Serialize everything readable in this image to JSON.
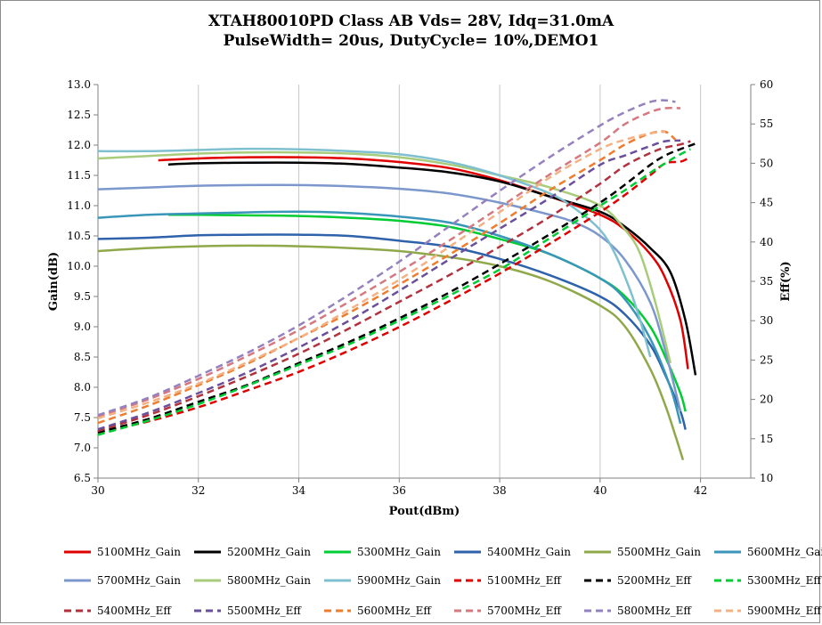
{
  "chart_data": {
    "type": "line",
    "title": "XTAH80010PD Class AB Vds= 28V, Idq=31.0mA",
    "subtitle": "PulseWidth= 20us, DutyCycle= 10%,DEMO1",
    "xlabel": "Pout(dBm)",
    "ylabel": "Gain(dB)",
    "y2label": "Eff(%)",
    "xlim": [
      30,
      43
    ],
    "ylim": [
      6.5,
      13.0
    ],
    "y2lim": [
      10,
      60
    ],
    "x_ticks": [
      "30",
      "32",
      "34",
      "36",
      "38",
      "40",
      "42"
    ],
    "y_ticks": [
      "6.5",
      "7.0",
      "7.5",
      "8.0",
      "8.5",
      "9.0",
      "9.5",
      "10.0",
      "10.5",
      "11.0",
      "11.5",
      "12.0",
      "12.5",
      "13.0"
    ],
    "y2_ticks": [
      "10",
      "15",
      "20",
      "25",
      "30",
      "35",
      "40",
      "45",
      "50",
      "55",
      "60"
    ],
    "grid": "vertical",
    "legend_position": "bottom",
    "series": [
      {
        "name": "5100MHz_Gain",
        "axis": "left",
        "style": "solid",
        "color": "#e00000",
        "x": [
          31.2,
          32,
          33,
          34,
          35,
          36,
          37,
          38,
          39,
          40,
          40.5,
          41,
          41.3,
          41.6,
          41.75
        ],
        "y": [
          11.75,
          11.78,
          11.8,
          11.8,
          11.78,
          11.72,
          11.62,
          11.42,
          11.15,
          10.85,
          10.6,
          10.2,
          9.8,
          9.1,
          8.3
        ]
      },
      {
        "name": "5200MHz_Gain",
        "axis": "left",
        "style": "solid",
        "color": "#000000",
        "x": [
          31.4,
          32,
          33,
          34,
          35,
          36,
          37,
          38,
          39,
          40,
          40.5,
          41,
          41.4,
          41.7,
          41.9
        ],
        "y": [
          11.68,
          11.7,
          11.71,
          11.71,
          11.69,
          11.63,
          11.55,
          11.4,
          11.15,
          10.9,
          10.65,
          10.3,
          9.9,
          9.1,
          8.2
        ]
      },
      {
        "name": "5300MHz_Gain",
        "axis": "left",
        "style": "solid",
        "color": "#00cc33",
        "x": [
          31.4,
          32,
          33,
          34,
          35,
          36,
          37,
          38,
          39,
          40,
          40.5,
          41,
          41.3,
          41.6,
          41.7
        ],
        "y": [
          10.85,
          10.85,
          10.84,
          10.83,
          10.8,
          10.75,
          10.65,
          10.45,
          10.2,
          9.8,
          9.5,
          9.0,
          8.5,
          7.9,
          7.6
        ]
      },
      {
        "name": "5400MHz_Gain",
        "axis": "left",
        "style": "solid",
        "color": "#2e62aa",
        "x": [
          30,
          31,
          32,
          33,
          34,
          35,
          36,
          37,
          38,
          39,
          40,
          40.5,
          41,
          41.3,
          41.6,
          41.7
        ],
        "y": [
          10.45,
          10.47,
          10.51,
          10.52,
          10.52,
          10.5,
          10.42,
          10.32,
          10.12,
          9.85,
          9.5,
          9.2,
          8.7,
          8.2,
          7.6,
          7.3
        ]
      },
      {
        "name": "5500MHz_Gain",
        "axis": "left",
        "style": "solid",
        "color": "#8fa84a",
        "x": [
          30,
          31,
          32,
          33,
          34,
          35,
          36,
          37,
          38,
          39,
          40,
          40.5,
          41,
          41.3,
          41.5,
          41.65
        ],
        "y": [
          10.25,
          10.3,
          10.33,
          10.34,
          10.33,
          10.3,
          10.25,
          10.15,
          10.0,
          9.75,
          9.35,
          9.0,
          8.3,
          7.7,
          7.2,
          6.8
        ]
      },
      {
        "name": "5600MHz_Gain",
        "axis": "left",
        "style": "solid",
        "color": "#3a96b8",
        "x": [
          30,
          31,
          32,
          33,
          34,
          35,
          36,
          37,
          38,
          39,
          40,
          40.5,
          41,
          41.4,
          41.6
        ],
        "y": [
          10.8,
          10.85,
          10.87,
          10.89,
          10.9,
          10.88,
          10.82,
          10.72,
          10.5,
          10.2,
          9.8,
          9.45,
          8.8,
          8.0,
          7.4
        ]
      },
      {
        "name": "5700MHz_Gain",
        "axis": "left",
        "style": "solid",
        "color": "#7b97cc",
        "x": [
          30,
          31,
          32,
          33,
          34,
          35,
          36,
          37,
          38,
          39,
          39.5,
          40,
          40.5,
          41,
          41.3,
          41.6
        ],
        "y": [
          11.27,
          11.3,
          11.33,
          11.34,
          11.34,
          11.32,
          11.28,
          11.2,
          11.05,
          10.85,
          10.72,
          10.5,
          10.1,
          9.4,
          8.6,
          7.6
        ]
      },
      {
        "name": "5800MHz_Gain",
        "axis": "left",
        "style": "solid",
        "color": "#a9cc7c",
        "x": [
          30,
          31,
          32,
          33,
          34,
          35,
          36,
          37,
          38,
          39,
          40,
          40.5,
          40.8,
          41.1,
          41.4
        ],
        "y": [
          11.78,
          11.82,
          11.86,
          11.88,
          11.88,
          11.86,
          11.8,
          11.68,
          11.5,
          11.3,
          11.0,
          10.6,
          10.2,
          9.4,
          8.4
        ]
      },
      {
        "name": "5900MHz_Gain",
        "axis": "left",
        "style": "solid",
        "color": "#7fc0d0",
        "x": [
          30,
          31,
          32,
          33,
          34,
          35,
          36,
          37,
          38,
          39,
          39.5,
          40,
          40.3,
          40.6,
          40.8,
          41.0
        ],
        "y": [
          11.9,
          11.9,
          11.92,
          11.94,
          11.93,
          11.9,
          11.85,
          11.72,
          11.5,
          11.2,
          10.95,
          10.6,
          10.2,
          9.6,
          9.1,
          8.5
        ]
      },
      {
        "name": "5100MHz_Eff",
        "axis": "right",
        "style": "dashed",
        "color": "#e00000",
        "x": [
          30,
          31,
          32,
          33,
          34,
          35,
          36,
          37,
          38,
          39,
          40,
          40.5,
          41,
          41.3,
          41.6,
          41.8
        ],
        "y": [
          15.8,
          17.2,
          19.0,
          21.2,
          23.5,
          26.2,
          29.2,
          32.5,
          36.0,
          39.8,
          43.8,
          46.0,
          48.5,
          50.0,
          50.2,
          50.8
        ]
      },
      {
        "name": "5200MHz_Eff",
        "axis": "right",
        "style": "dashed",
        "color": "#000000",
        "x": [
          30,
          31,
          32,
          33,
          34,
          35,
          36,
          37,
          38,
          39,
          40,
          40.5,
          41,
          41.3,
          41.6,
          41.9
        ],
        "y": [
          15.8,
          17.5,
          19.7,
          21.9,
          24.6,
          27.3,
          30.3,
          33.6,
          37.2,
          41.0,
          45.0,
          47.3,
          49.8,
          51.0,
          51.8,
          52.5
        ]
      },
      {
        "name": "5300MHz_Eff",
        "axis": "right",
        "style": "dashed",
        "color": "#00cc33",
        "x": [
          30,
          31,
          32,
          33,
          34,
          35,
          36,
          37,
          38,
          39,
          40,
          40.5,
          41,
          41.3,
          41.5,
          41.8
        ],
        "y": [
          15.5,
          17.3,
          19.4,
          21.8,
          24.4,
          27.0,
          30.0,
          33.2,
          36.5,
          40.5,
          44.6,
          46.6,
          48.8,
          50.0,
          50.8,
          51.8
        ]
      },
      {
        "name": "5400MHz_Eff",
        "axis": "right",
        "style": "dashed",
        "color": "#b3313c",
        "x": [
          30,
          31,
          32,
          33,
          34,
          35,
          36,
          37,
          38,
          39,
          40,
          40.5,
          41,
          41.3,
          41.6,
          41.8
        ],
        "y": [
          16.0,
          18.0,
          20.4,
          23.0,
          25.8,
          29.0,
          32.4,
          35.8,
          39.4,
          43.2,
          47.4,
          49.7,
          51.3,
          52.0,
          52.4,
          52.8
        ]
      },
      {
        "name": "5500MHz_Eff",
        "axis": "right",
        "style": "dashed",
        "color": "#6a4f9a",
        "x": [
          30,
          31,
          32,
          33,
          34,
          35,
          36,
          37,
          38,
          39,
          40,
          40.5,
          41,
          41.3,
          41.6
        ],
        "y": [
          16.2,
          18.3,
          20.8,
          23.5,
          26.6,
          30.0,
          33.8,
          37.8,
          41.7,
          45.6,
          49.8,
          51.0,
          52.2,
          52.8,
          52.9
        ]
      },
      {
        "name": "5600MHz_Eff",
        "axis": "right",
        "style": "dashed",
        "color": "#ee7d2f",
        "x": [
          30,
          31,
          32,
          33,
          34,
          35,
          36,
          37,
          38,
          39,
          40,
          40.5,
          41,
          41.3,
          41.5
        ],
        "y": [
          17.0,
          19.2,
          21.8,
          24.6,
          27.8,
          31.0,
          34.6,
          38.4,
          42.4,
          46.6,
          50.4,
          52.4,
          53.8,
          54.0,
          53.0
        ]
      },
      {
        "name": "5700MHz_Eff",
        "axis": "right",
        "style": "dashed",
        "color": "#d67880",
        "x": [
          30,
          31,
          32,
          33,
          34,
          35,
          36,
          37,
          38,
          39,
          40,
          40.5,
          41,
          41.3,
          41.6
        ],
        "y": [
          17.8,
          20.0,
          22.6,
          25.6,
          28.8,
          32.4,
          36.2,
          40.2,
          44.4,
          48.6,
          52.6,
          55.0,
          56.5,
          57.0,
          57.0
        ]
      },
      {
        "name": "5800MHz_Eff",
        "axis": "right",
        "style": "dashed",
        "color": "#9580c0",
        "x": [
          30,
          31,
          32,
          33,
          34,
          35,
          36,
          37,
          38,
          39,
          40,
          40.5,
          41,
          41.3,
          41.5
        ],
        "y": [
          18.0,
          20.2,
          23.0,
          26.0,
          29.4,
          33.3,
          37.5,
          42.0,
          46.5,
          50.8,
          54.8,
          56.5,
          57.8,
          58.0,
          57.8
        ]
      },
      {
        "name": "5900MHz_Eff",
        "axis": "right",
        "style": "dashed",
        "color": "#f4b183",
        "x": [
          30,
          31,
          32,
          33,
          34,
          35,
          36,
          37,
          38,
          39,
          40,
          40.5,
          41,
          41.3
        ],
        "y": [
          17.6,
          19.6,
          22.0,
          24.8,
          27.8,
          31.4,
          35.2,
          39.4,
          43.8,
          48.2,
          51.8,
          53.0,
          53.8,
          54.0
        ]
      }
    ]
  }
}
